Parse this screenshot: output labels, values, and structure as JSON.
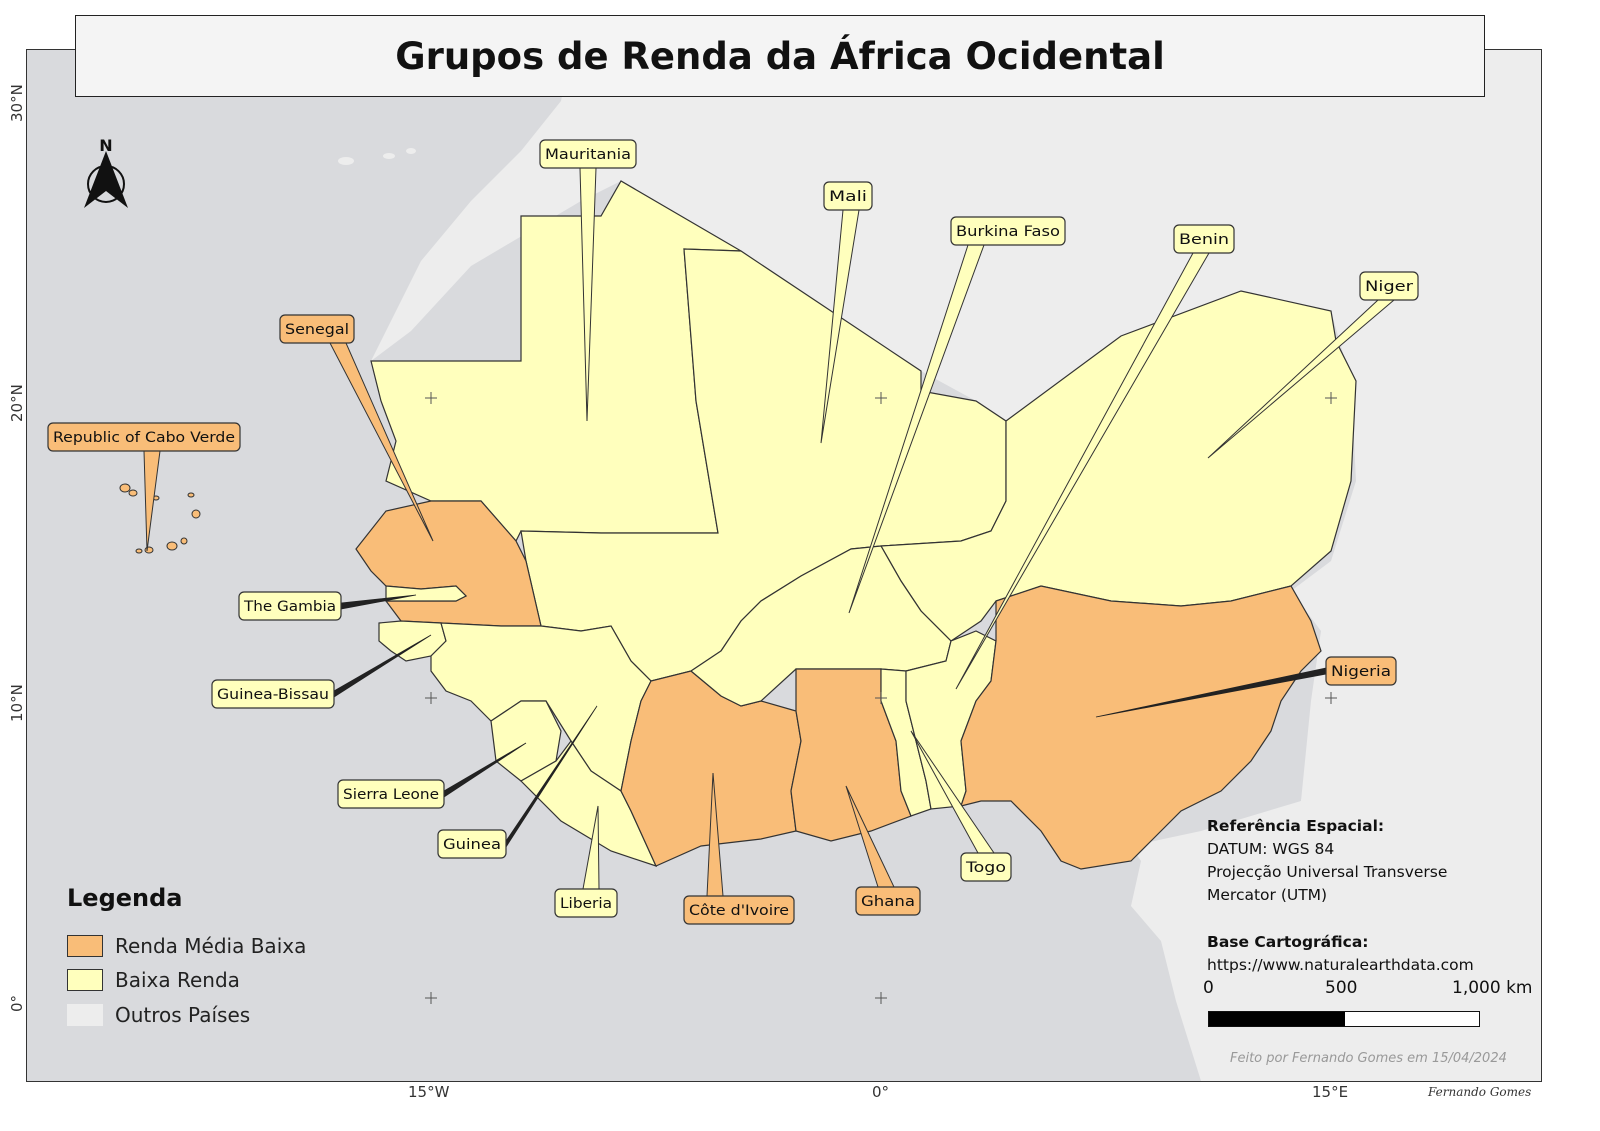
{
  "title": "Grupos de Renda da África Ocidental",
  "axes": {
    "lat_labels": [
      "30°N",
      "20°N",
      "10°N",
      "0°"
    ],
    "lon_labels": [
      "15°W",
      "0°",
      "15°E"
    ]
  },
  "colors": {
    "sea": "#d9dadd",
    "other_countries": "#ededed",
    "lower_middle_income": "#f9bd78",
    "low_income": "#ffffbd",
    "border": "#333333"
  },
  "north_arrow": {
    "letter": "N"
  },
  "countries": [
    {
      "name": "Mauritania",
      "group": "Baixa Renda"
    },
    {
      "name": "Mali",
      "group": "Baixa Renda"
    },
    {
      "name": "Burkina Faso",
      "group": "Baixa Renda"
    },
    {
      "name": "Benin",
      "group": "Baixa Renda"
    },
    {
      "name": "Niger",
      "group": "Baixa Renda"
    },
    {
      "name": "Senegal",
      "group": "Renda Média Baixa"
    },
    {
      "name": "Republic of Cabo Verde",
      "group": "Renda Média Baixa"
    },
    {
      "name": "The Gambia",
      "group": "Baixa Renda"
    },
    {
      "name": "Guinea-Bissau",
      "group": "Baixa Renda"
    },
    {
      "name": "Sierra Leone",
      "group": "Baixa Renda"
    },
    {
      "name": "Guinea",
      "group": "Baixa Renda"
    },
    {
      "name": "Liberia",
      "group": "Baixa Renda"
    },
    {
      "name": "Côte d'Ivoire",
      "group": "Renda Média Baixa"
    },
    {
      "name": "Ghana",
      "group": "Renda Média Baixa"
    },
    {
      "name": "Togo",
      "group": "Baixa Renda"
    },
    {
      "name": "Nigeria",
      "group": "Renda Média Baixa"
    }
  ],
  "legend": {
    "title": "Legenda",
    "items": [
      {
        "label": "Renda Média Baixa",
        "color": "#f9bd78"
      },
      {
        "label": "Baixa Renda",
        "color": "#ffffbd"
      },
      {
        "label": "Outros Países",
        "color": "#ededed"
      }
    ]
  },
  "reference": {
    "heading": "Referência Espacial:",
    "datum": "DATUM: WGS 84",
    "projection_line1": "Projecção Universal Transverse",
    "projection_line2": "Mercator (UTM)"
  },
  "base": {
    "heading": "Base Cartográfica:",
    "url": "https://www.naturalearthdata.com"
  },
  "scale": {
    "labels": [
      "0",
      "500",
      "1,000 km"
    ]
  },
  "credit": "Feito por Fernando Gomes em 15/04/2024",
  "signature": "Fernando Gomes"
}
